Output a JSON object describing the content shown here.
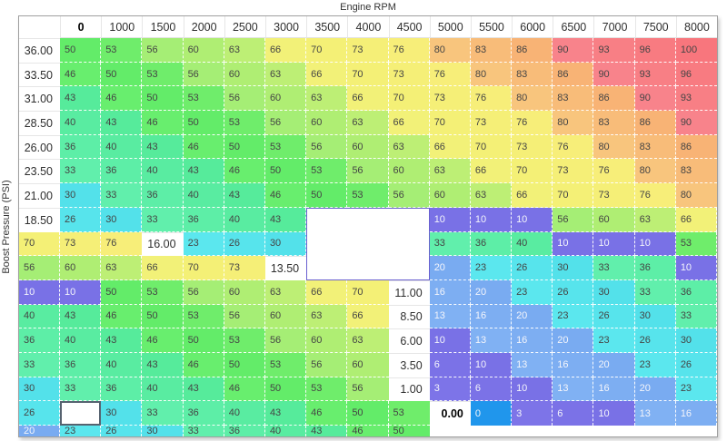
{
  "title": "Engine RPM",
  "y_axis_label": "Boost Pressure (PSI)",
  "chart_data": {
    "type": "heatmap",
    "x_label": "Engine RPM",
    "y_label": "Boost Pressure (PSI)",
    "columns": [
      "0",
      "1000",
      "1500",
      "2000",
      "2500",
      "3000",
      "3500",
      "4000",
      "4500",
      "5000",
      "5500",
      "6000",
      "6500",
      "7000",
      "7500",
      "8000"
    ],
    "rows": [
      "36.00",
      "33.50",
      "31.00",
      "28.50",
      "26.00",
      "23.50",
      "21.00",
      "18.50",
      "16.00",
      "13.50",
      "11.00",
      "8.50",
      "6.00",
      "3.50",
      "1.00",
      "0.00"
    ],
    "values": [
      [
        50,
        53,
        56,
        60,
        63,
        66,
        70,
        73,
        76,
        80,
        83,
        86,
        90,
        93,
        96,
        100
      ],
      [
        46,
        50,
        53,
        56,
        60,
        63,
        66,
        70,
        73,
        76,
        80,
        83,
        86,
        90,
        93,
        96
      ],
      [
        43,
        46,
        50,
        53,
        56,
        60,
        63,
        66,
        70,
        73,
        76,
        80,
        83,
        86,
        90,
        93
      ],
      [
        40,
        43,
        46,
        50,
        53,
        56,
        60,
        63,
        66,
        70,
        73,
        76,
        80,
        83,
        86,
        90
      ],
      [
        36,
        40,
        43,
        46,
        50,
        53,
        56,
        60,
        63,
        66,
        70,
        73,
        76,
        80,
        83,
        86
      ],
      [
        33,
        36,
        40,
        43,
        46,
        50,
        53,
        56,
        60,
        63,
        66,
        70,
        73,
        76,
        80,
        83
      ],
      [
        30,
        33,
        36,
        40,
        43,
        46,
        50,
        53,
        56,
        60,
        63,
        66,
        70,
        73,
        76,
        80
      ],
      [
        26,
        30,
        33,
        36,
        40,
        43,
        10,
        10,
        10,
        56,
        60,
        63,
        66,
        70,
        73,
        76
      ],
      [
        23,
        26,
        30,
        33,
        36,
        40,
        10,
        10,
        10,
        53,
        56,
        60,
        63,
        66,
        70,
        73
      ],
      [
        20,
        23,
        26,
        30,
        33,
        36,
        10,
        10,
        10,
        50,
        53,
        56,
        60,
        63,
        66,
        70
      ],
      [
        16,
        20,
        23,
        26,
        30,
        33,
        36,
        40,
        43,
        46,
        50,
        53,
        56,
        60,
        63,
        66
      ],
      [
        13,
        16,
        20,
        23,
        26,
        30,
        33,
        36,
        40,
        43,
        46,
        50,
        53,
        56,
        60,
        63
      ],
      [
        10,
        13,
        16,
        20,
        23,
        26,
        30,
        33,
        36,
        40,
        43,
        46,
        50,
        53,
        56,
        60
      ],
      [
        6,
        10,
        13,
        16,
        20,
        23,
        26,
        30,
        33,
        36,
        40,
        43,
        46,
        50,
        53,
        56
      ],
      [
        3,
        6,
        10,
        13,
        16,
        20,
        23,
        26,
        30,
        33,
        36,
        40,
        43,
        46,
        50,
        53
      ],
      [
        0,
        3,
        6,
        10,
        13,
        16,
        20,
        23,
        26,
        30,
        33,
        36,
        40,
        43,
        46,
        50
      ]
    ]
  },
  "selection": {
    "active_cell": {
      "row": "0.00",
      "column": "0",
      "value": 0
    },
    "edited_block": {
      "rows": [
        "18.50",
        "16.00",
        "13.50"
      ],
      "columns": [
        "3500",
        "4000",
        "4500"
      ],
      "value": 10
    }
  },
  "colors": {
    "value_fill": {
      "0": "#2096ec",
      "3": "#7d74e8",
      "6": "#7b72e7",
      "10": "#7971e6",
      "13": "#80b1f3",
      "16": "#7daef2",
      "20": "#79abf1",
      "23": "#5be7ee",
      "26": "#57e4ec",
      "30": "#53e1ea",
      "33": "#61efac",
      "36": "#5deea7",
      "40": "#59eca1",
      "43": "#56eb9b",
      "46": "#68ee6e",
      "50": "#63ec69",
      "53": "#6fed6b",
      "56": "#a5ee75",
      "60": "#afee73",
      "63": "#bdef75",
      "66": "#f2f178",
      "70": "#f4f076",
      "73": "#f5ef77",
      "76": "#f7ee79",
      "80": "#f8c57d",
      "83": "#f8bc79",
      "86": "#f8b375",
      "90": "#f8838b",
      "93": "#f87f85",
      "96": "#f87b81",
      "100": "#f8767d"
    },
    "light_text_max_value": 20,
    "dark_text": "#454545",
    "light_text": "#f4f5fb",
    "grid_dash": "#ffffff",
    "panel_border": "#9f9f9f",
    "active_cell_border": "#566370",
    "block_border": "#6a60d0"
  }
}
